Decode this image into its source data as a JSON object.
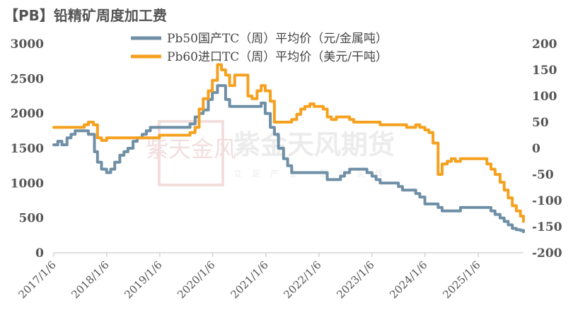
{
  "chart_data": {
    "type": "line",
    "title": "【PB】铅精矿周度加工费",
    "x_tick_labels": [
      "2017/1/6",
      "2018/1/6",
      "2019/1/6",
      "2020/1/6",
      "2021/1/6",
      "2022/1/6",
      "2023/1/6",
      "2024/1/6",
      "2025/1/6"
    ],
    "x_range": [
      "2017-01-06",
      "2025-11-14"
    ],
    "y_left": {
      "ticks": [
        0,
        500,
        1000,
        1500,
        2000,
        2500,
        3000
      ],
      "range": [
        0,
        3000
      ]
    },
    "y_right": {
      "ticks": [
        -200,
        -150,
        -100,
        -50,
        0,
        50,
        100,
        150,
        200
      ],
      "range": [
        -200,
        200
      ]
    },
    "series": [
      {
        "name": "Pb50国产TC（周）平均价（元/金属吨）",
        "axis": "left",
        "color": "#6f8fa6",
        "points": [
          [
            "2017-01-06",
            1550
          ],
          [
            "2017-02-03",
            1600
          ],
          [
            "2017-03-03",
            1550
          ],
          [
            "2017-04-07",
            1650
          ],
          [
            "2017-05-05",
            1700
          ],
          [
            "2017-06-02",
            1750
          ],
          [
            "2017-08-04",
            1750
          ],
          [
            "2017-09-01",
            1700
          ],
          [
            "2017-10-13",
            1450
          ],
          [
            "2017-11-03",
            1300
          ],
          [
            "2017-12-01",
            1200
          ],
          [
            "2018-01-05",
            1150
          ],
          [
            "2018-02-02",
            1200
          ],
          [
            "2018-03-02",
            1300
          ],
          [
            "2018-04-06",
            1400
          ],
          [
            "2018-05-04",
            1450
          ],
          [
            "2018-06-01",
            1500
          ],
          [
            "2018-07-06",
            1600
          ],
          [
            "2018-08-03",
            1650
          ],
          [
            "2018-09-07",
            1700
          ],
          [
            "2018-10-05",
            1750
          ],
          [
            "2018-11-02",
            1800
          ],
          [
            "2019-01-04",
            1800
          ],
          [
            "2019-04-05",
            1800
          ],
          [
            "2019-06-07",
            1800
          ],
          [
            "2019-08-02",
            1850
          ],
          [
            "2019-09-06",
            1950
          ],
          [
            "2019-10-04",
            2000
          ],
          [
            "2019-11-01",
            2050
          ],
          [
            "2019-12-06",
            2200
          ],
          [
            "2020-01-03",
            2300
          ],
          [
            "2020-02-07",
            2400
          ],
          [
            "2020-03-06",
            2400
          ],
          [
            "2020-04-03",
            2200
          ],
          [
            "2020-05-01",
            2100
          ],
          [
            "2020-08-07",
            2100
          ],
          [
            "2020-11-06",
            2100
          ],
          [
            "2020-12-04",
            2150
          ],
          [
            "2021-01-01",
            2000
          ],
          [
            "2021-02-05",
            1800
          ],
          [
            "2021-03-05",
            1700
          ],
          [
            "2021-04-02",
            1500
          ],
          [
            "2021-05-07",
            1350
          ],
          [
            "2021-06-04",
            1250
          ],
          [
            "2021-07-02",
            1150
          ],
          [
            "2021-10-01",
            1150
          ],
          [
            "2022-01-07",
            1150
          ],
          [
            "2022-02-04",
            1150
          ],
          [
            "2022-03-04",
            1050
          ],
          [
            "2022-05-06",
            1050
          ],
          [
            "2022-06-03",
            1100
          ],
          [
            "2022-07-01",
            1150
          ],
          [
            "2022-08-05",
            1200
          ],
          [
            "2022-11-04",
            1200
          ],
          [
            "2022-12-02",
            1150
          ],
          [
            "2023-01-06",
            1100
          ],
          [
            "2023-02-03",
            1050
          ],
          [
            "2023-03-03",
            1000
          ],
          [
            "2023-06-02",
            1000
          ],
          [
            "2023-07-07",
            950
          ],
          [
            "2023-08-04",
            900
          ],
          [
            "2023-10-06",
            900
          ],
          [
            "2023-11-03",
            850
          ],
          [
            "2023-12-01",
            800
          ],
          [
            "2024-01-05",
            700
          ],
          [
            "2024-03-01",
            700
          ],
          [
            "2024-04-05",
            650
          ],
          [
            "2024-05-03",
            600
          ],
          [
            "2024-06-07",
            600
          ],
          [
            "2024-08-02",
            600
          ],
          [
            "2024-09-06",
            650
          ],
          [
            "2024-12-06",
            650
          ],
          [
            "2025-01-03",
            650
          ],
          [
            "2025-03-07",
            650
          ],
          [
            "2025-04-04",
            600
          ],
          [
            "2025-05-02",
            550
          ],
          [
            "2025-06-06",
            500
          ],
          [
            "2025-07-04",
            450
          ],
          [
            "2025-08-01",
            400
          ],
          [
            "2025-08-29",
            350
          ],
          [
            "2025-09-26",
            330
          ],
          [
            "2025-10-24",
            320
          ],
          [
            "2025-11-14",
            300
          ]
        ]
      },
      {
        "name": "Pb60进口TC（周）平均价（美元/干吨）",
        "axis": "right",
        "color": "#f5a11f",
        "points": [
          [
            "2017-01-06",
            40
          ],
          [
            "2017-03-03",
            40
          ],
          [
            "2017-06-02",
            40
          ],
          [
            "2017-07-07",
            40
          ],
          [
            "2017-08-04",
            45
          ],
          [
            "2017-09-01",
            50
          ],
          [
            "2017-10-06",
            45
          ],
          [
            "2017-11-03",
            20
          ],
          [
            "2017-12-01",
            15
          ],
          [
            "2018-01-05",
            20
          ],
          [
            "2018-06-01",
            20
          ],
          [
            "2018-11-02",
            20
          ],
          [
            "2019-01-04",
            25
          ],
          [
            "2019-06-07",
            25
          ],
          [
            "2019-08-02",
            30
          ],
          [
            "2019-09-06",
            40
          ],
          [
            "2019-10-04",
            75
          ],
          [
            "2019-11-01",
            95
          ],
          [
            "2019-12-06",
            110
          ],
          [
            "2020-01-03",
            130
          ],
          [
            "2020-02-07",
            160
          ],
          [
            "2020-03-06",
            150
          ],
          [
            "2020-04-03",
            140
          ],
          [
            "2020-05-01",
            120
          ],
          [
            "2020-06-05",
            140
          ],
          [
            "2020-08-07",
            140
          ],
          [
            "2020-09-04",
            100
          ],
          [
            "2020-10-02",
            95
          ],
          [
            "2020-11-06",
            110
          ],
          [
            "2020-12-04",
            120
          ],
          [
            "2021-01-01",
            110
          ],
          [
            "2021-02-05",
            90
          ],
          [
            "2021-03-05",
            50
          ],
          [
            "2021-06-04",
            50
          ],
          [
            "2021-07-02",
            55
          ],
          [
            "2021-08-06",
            65
          ],
          [
            "2021-09-03",
            75
          ],
          [
            "2021-10-01",
            80
          ],
          [
            "2021-11-05",
            85
          ],
          [
            "2021-12-03",
            80
          ],
          [
            "2022-01-07",
            80
          ],
          [
            "2022-02-04",
            75
          ],
          [
            "2022-03-04",
            60
          ],
          [
            "2022-04-01",
            55
          ],
          [
            "2022-05-06",
            60
          ],
          [
            "2022-07-01",
            60
          ],
          [
            "2022-08-05",
            55
          ],
          [
            "2022-09-02",
            50
          ],
          [
            "2022-10-07",
            50
          ],
          [
            "2022-12-02",
            50
          ],
          [
            "2023-01-06",
            50
          ],
          [
            "2023-03-03",
            45
          ],
          [
            "2023-06-02",
            45
          ],
          [
            "2023-08-04",
            45
          ],
          [
            "2023-09-01",
            40
          ],
          [
            "2023-10-06",
            40
          ],
          [
            "2023-11-03",
            45
          ],
          [
            "2023-12-01",
            40
          ],
          [
            "2024-01-05",
            35
          ],
          [
            "2024-02-02",
            30
          ],
          [
            "2024-03-01",
            10
          ],
          [
            "2024-04-05",
            -50
          ],
          [
            "2024-05-03",
            -30
          ],
          [
            "2024-06-07",
            -25
          ],
          [
            "2024-07-05",
            -20
          ],
          [
            "2024-08-02",
            -25
          ],
          [
            "2024-09-06",
            -20
          ],
          [
            "2024-10-04",
            -20
          ],
          [
            "2024-11-01",
            -20
          ],
          [
            "2024-12-06",
            -20
          ],
          [
            "2025-01-03",
            -20
          ],
          [
            "2025-02-07",
            -20
          ],
          [
            "2025-03-07",
            -30
          ],
          [
            "2025-04-04",
            -40
          ],
          [
            "2025-05-02",
            -50
          ],
          [
            "2025-06-06",
            -65
          ],
          [
            "2025-07-04",
            -80
          ],
          [
            "2025-08-01",
            -95
          ],
          [
            "2025-08-29",
            -110
          ],
          [
            "2025-09-26",
            -120
          ],
          [
            "2025-10-24",
            -130
          ],
          [
            "2025-11-14",
            -140
          ]
        ]
      }
    ]
  },
  "watermark": {
    "text": "紫金天风期货",
    "subtext": "立足产业·服务实体",
    "seal_text": "紫天金风"
  }
}
